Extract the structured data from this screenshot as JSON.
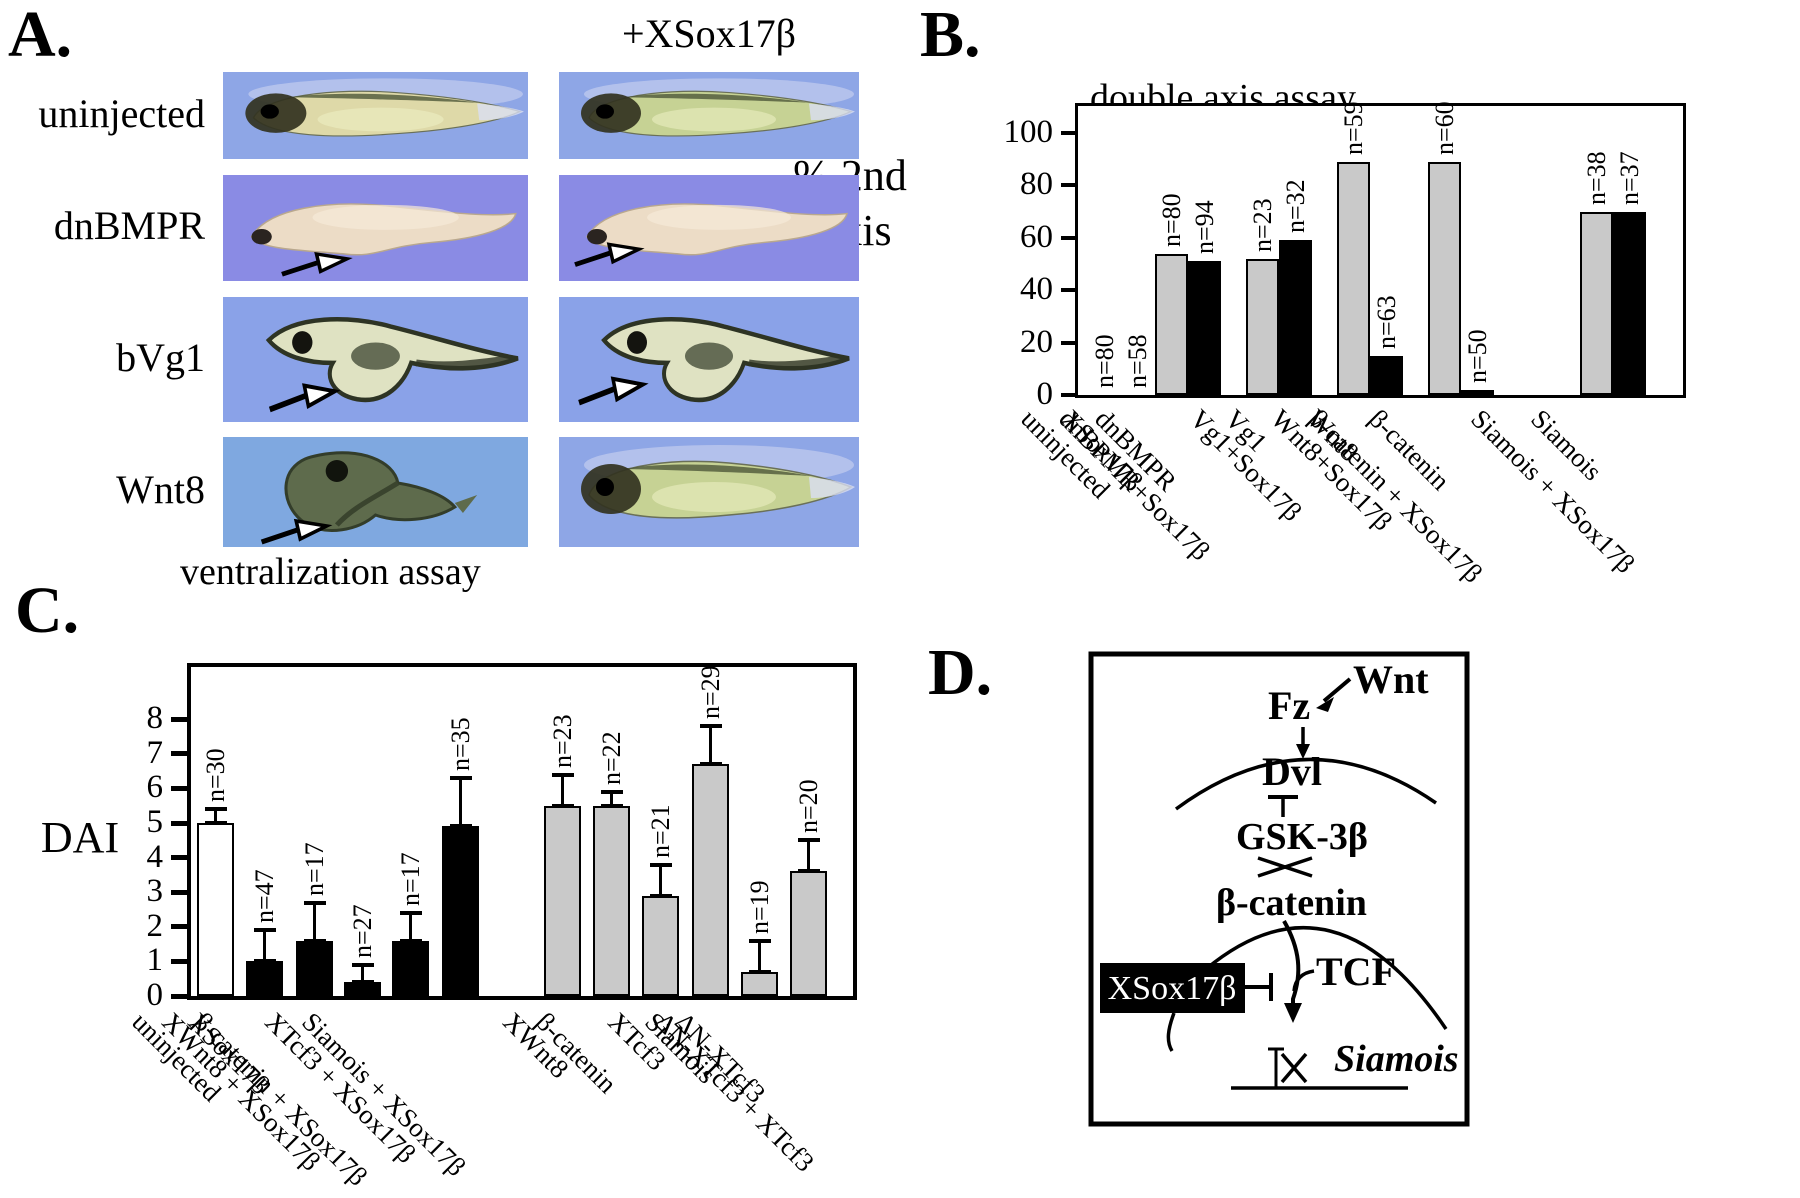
{
  "colors": {
    "bar_gray": "#c9c9c9",
    "bar_black": "#000000",
    "bar_white": "#ffffff",
    "axis_black": "#000000",
    "photo_blue_1": "#8ea6e6",
    "photo_blue_2": "#8a8be4",
    "photo_blue_3": "#8aa2e8",
    "photo_blue_4": "#7fa8e0"
  },
  "panel_a": {
    "label": "A.",
    "column_header": "+XSox17β",
    "rows": [
      {
        "label": "uninjected",
        "left_variant": "tadpole-normal",
        "right_variant": "tadpole-normal-green",
        "left_arrow": false,
        "right_arrow": false
      },
      {
        "label": "dnBMPR",
        "left_variant": "ventralized-embryo",
        "right_variant": "ventralized-embryo",
        "left_arrow": true,
        "right_arrow": true
      },
      {
        "label": "bVg1",
        "left_variant": "secondary-axis-embryo",
        "right_variant": "secondary-axis-embryo",
        "left_arrow": true,
        "right_arrow": true
      },
      {
        "label": "Wnt8",
        "left_variant": "dorsalized-embryo",
        "right_variant": "tadpole-normal-green",
        "left_arrow": true,
        "right_arrow": false
      }
    ]
  },
  "panel_b": {
    "label": "B.",
    "ylabel_line1": "% 2nd",
    "ylabel_line2": "Axis"
  },
  "panel_c": {
    "label": "C.",
    "ylabel": "DAI"
  },
  "panel_d": {
    "label": "D.",
    "nodes": {
      "wnt": "Wnt",
      "fz": "Fz",
      "dvl": "Dvl",
      "gsk": "GSK-3β",
      "bcatenin": "β-catenin",
      "tcf": "TCF",
      "xsox": "XSox17β",
      "siamois": "Siamois"
    }
  },
  "chart_data": [
    {
      "id": "double_axis_assay",
      "type": "bar",
      "title": "double axis assay",
      "ylabel": "% 2nd Axis",
      "xlabel": "",
      "ylim": [
        0,
        110
      ],
      "yticks": [
        0,
        20,
        40,
        60,
        80,
        100
      ],
      "grid": false,
      "legend": "none",
      "categories": [
        "uninjected",
        "XSox17β",
        "dnBMPR",
        "dnBPMR+Sox17β",
        "Vg1",
        "Vg1+Sox17β",
        "Wnt8",
        "Wnt8+Sox17β",
        "β-catenin",
        "β-catenin + XSox17β",
        "Siamois",
        "Siamois + XSox17β"
      ],
      "values": [
        0,
        0,
        54,
        51,
        52,
        59,
        89,
        15,
        89,
        2,
        70,
        70
      ],
      "n_labels": [
        "n=80",
        "n=58",
        "n=80",
        "n=94",
        "n=23",
        "n=32",
        "n=59",
        "n=63",
        "n=60",
        "n=50",
        "n=38",
        "n=37"
      ],
      "bar_colors": [
        "gray",
        "black",
        "gray",
        "black",
        "gray",
        "black",
        "gray",
        "black",
        "gray",
        "black",
        "gray",
        "black"
      ]
    },
    {
      "id": "ventralization_assay",
      "type": "bar",
      "title": "ventralization assay",
      "ylabel": "DAI",
      "xlabel": "",
      "ylim": [
        0,
        8.6
      ],
      "yticks": [
        0,
        1,
        2,
        3,
        4,
        5,
        6,
        7,
        8
      ],
      "grid": false,
      "legend": "none",
      "categories": [
        "uninjected",
        "XSox17β",
        "XWnt8 + XSox17β",
        "β-catenin + XSox17β",
        "XTcf3 + XSox17β",
        "Siamois + XSox17β",
        "XWnt8",
        "β-catenin",
        "XTcf3",
        "Siamois",
        "ΔN-XTcf3",
        "ΔN-XTcf3 + XTcf3"
      ],
      "values": [
        5.0,
        1.0,
        1.6,
        0.4,
        1.6,
        4.9,
        5.5,
        5.5,
        2.9,
        6.7,
        0.7,
        3.6
      ],
      "errors_up": [
        0.4,
        0.9,
        1.1,
        0.5,
        0.8,
        1.4,
        0.9,
        0.4,
        0.9,
        1.1,
        0.9,
        0.9
      ],
      "n_labels": [
        "n=30",
        "n=47",
        "n=17",
        "n=27",
        "n=17",
        "n=35",
        "n=23",
        "n=22",
        "n=21",
        "n=29",
        "n=19",
        "n=20"
      ],
      "bar_colors": [
        "white",
        "black",
        "black",
        "black",
        "black",
        "black",
        "gray",
        "gray",
        "gray",
        "gray",
        "gray",
        "gray"
      ]
    }
  ]
}
